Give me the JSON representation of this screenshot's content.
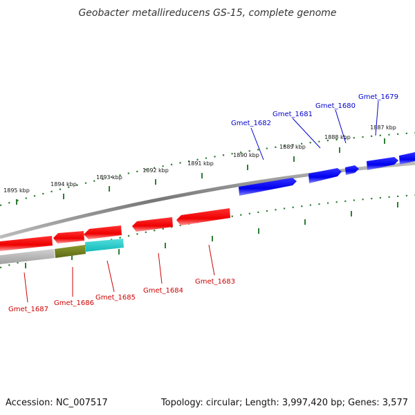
{
  "title": "Geobacter metallireducens GS-15, complete genome",
  "footer": {
    "accession": "Accession: NC_007517",
    "summary": "Topology: circular; Length: 3,997,420 bp; Genes: 3,577"
  },
  "colors": {
    "background": "#ffffff",
    "backbone": "#888888",
    "tick": "#2e7d32",
    "forward_gene": "#0000ee",
    "reverse_gene": "#ee0000",
    "label_forward": "#0000cc",
    "label_reverse": "#cc0000",
    "conserved_grey": "#aaaaaa",
    "conserved_olive": "#6b7a1a",
    "conserved_cyan": "#22cccc"
  },
  "scale": {
    "labels": [
      "1895 kbp",
      "1894 kbp",
      "1893 kbp",
      "1892 kbp",
      "1891 kbp",
      "1890 kbp",
      "1889 kbp",
      "1888 kbp",
      "1887 kbp"
    ]
  },
  "genes": {
    "forward": [
      "Gmet_1682",
      "Gmet_1681",
      "Gmet_1680",
      "Gmet_1679"
    ],
    "reverse": [
      "Gmet_1687",
      "Gmet_1686",
      "Gmet_1685",
      "Gmet_1684",
      "Gmet_1683"
    ]
  }
}
